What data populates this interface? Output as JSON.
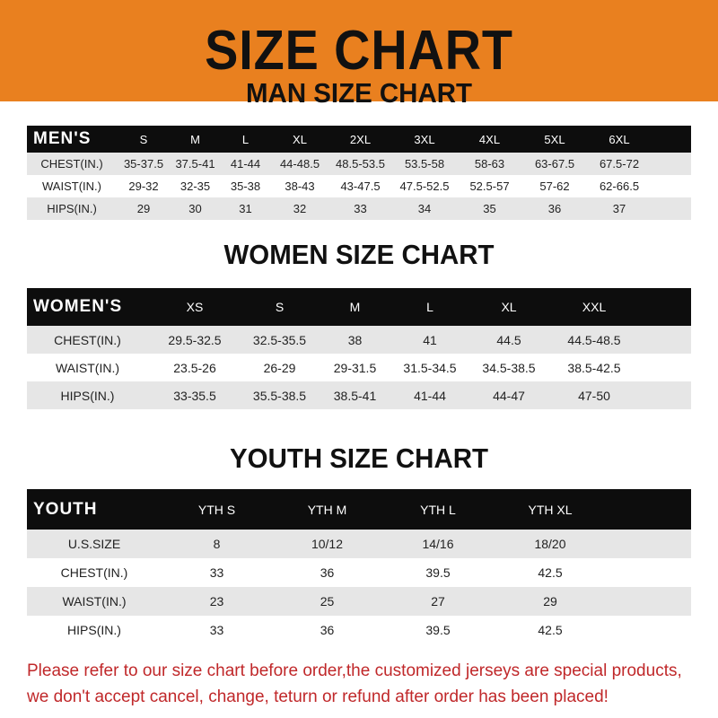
{
  "banner": {
    "title": "SIZE CHART",
    "color": "#e9801f"
  },
  "men": {
    "title": "MAN SIZE CHART",
    "header": [
      "MEN'S",
      "S",
      "M",
      "L",
      "XL",
      "2XL",
      "3XL",
      "4XL",
      "5XL",
      "6XL"
    ],
    "rows": [
      [
        "CHEST(IN.)",
        "35-37.5",
        "37.5-41",
        "41-44",
        "44-48.5",
        "48.5-53.5",
        "53.5-58",
        "58-63",
        "63-67.5",
        "67.5-72"
      ],
      [
        "WAIST(IN.)",
        "29-32",
        "32-35",
        "35-38",
        "38-43",
        "43-47.5",
        "47.5-52.5",
        "52.5-57",
        "57-62",
        "62-66.5"
      ],
      [
        "HIPS(IN.)",
        "29",
        "30",
        "31",
        "32",
        "33",
        "34",
        "35",
        "36",
        "37"
      ]
    ]
  },
  "women": {
    "title": "WOMEN SIZE CHART",
    "header": [
      "WOMEN'S",
      "XS",
      "S",
      "M",
      "L",
      "XL",
      "XXL"
    ],
    "rows": [
      [
        "CHEST(IN.)",
        "29.5-32.5",
        "32.5-35.5",
        "38",
        "41",
        "44.5",
        "44.5-48.5"
      ],
      [
        "WAIST(IN.)",
        "23.5-26",
        "26-29",
        "29-31.5",
        "31.5-34.5",
        "34.5-38.5",
        "38.5-42.5"
      ],
      [
        "HIPS(IN.)",
        "33-35.5",
        "35.5-38.5",
        "38.5-41",
        "41-44",
        "44-47",
        "47-50"
      ]
    ]
  },
  "youth": {
    "title": "YOUTH SIZE CHART",
    "header": [
      "YOUTH",
      "YTH S",
      "YTH M",
      "YTH L",
      "YTH XL"
    ],
    "rows": [
      [
        "U.S.SIZE",
        "8",
        "10/12",
        "14/16",
        "18/20"
      ],
      [
        "CHEST(IN.)",
        "33",
        "36",
        "39.5",
        "42.5"
      ],
      [
        "WAIST(IN.)",
        "23",
        "25",
        "27",
        "29"
      ],
      [
        "HIPS(IN.)",
        "33",
        "36",
        "39.5",
        "42.5"
      ]
    ]
  },
  "note": {
    "line1": "Please refer to our size chart before order,the customized jerseys are special products,",
    "line2": "we don't accept cancel, change, teturn or refund after order has been placed!",
    "color": "#c0282a"
  }
}
